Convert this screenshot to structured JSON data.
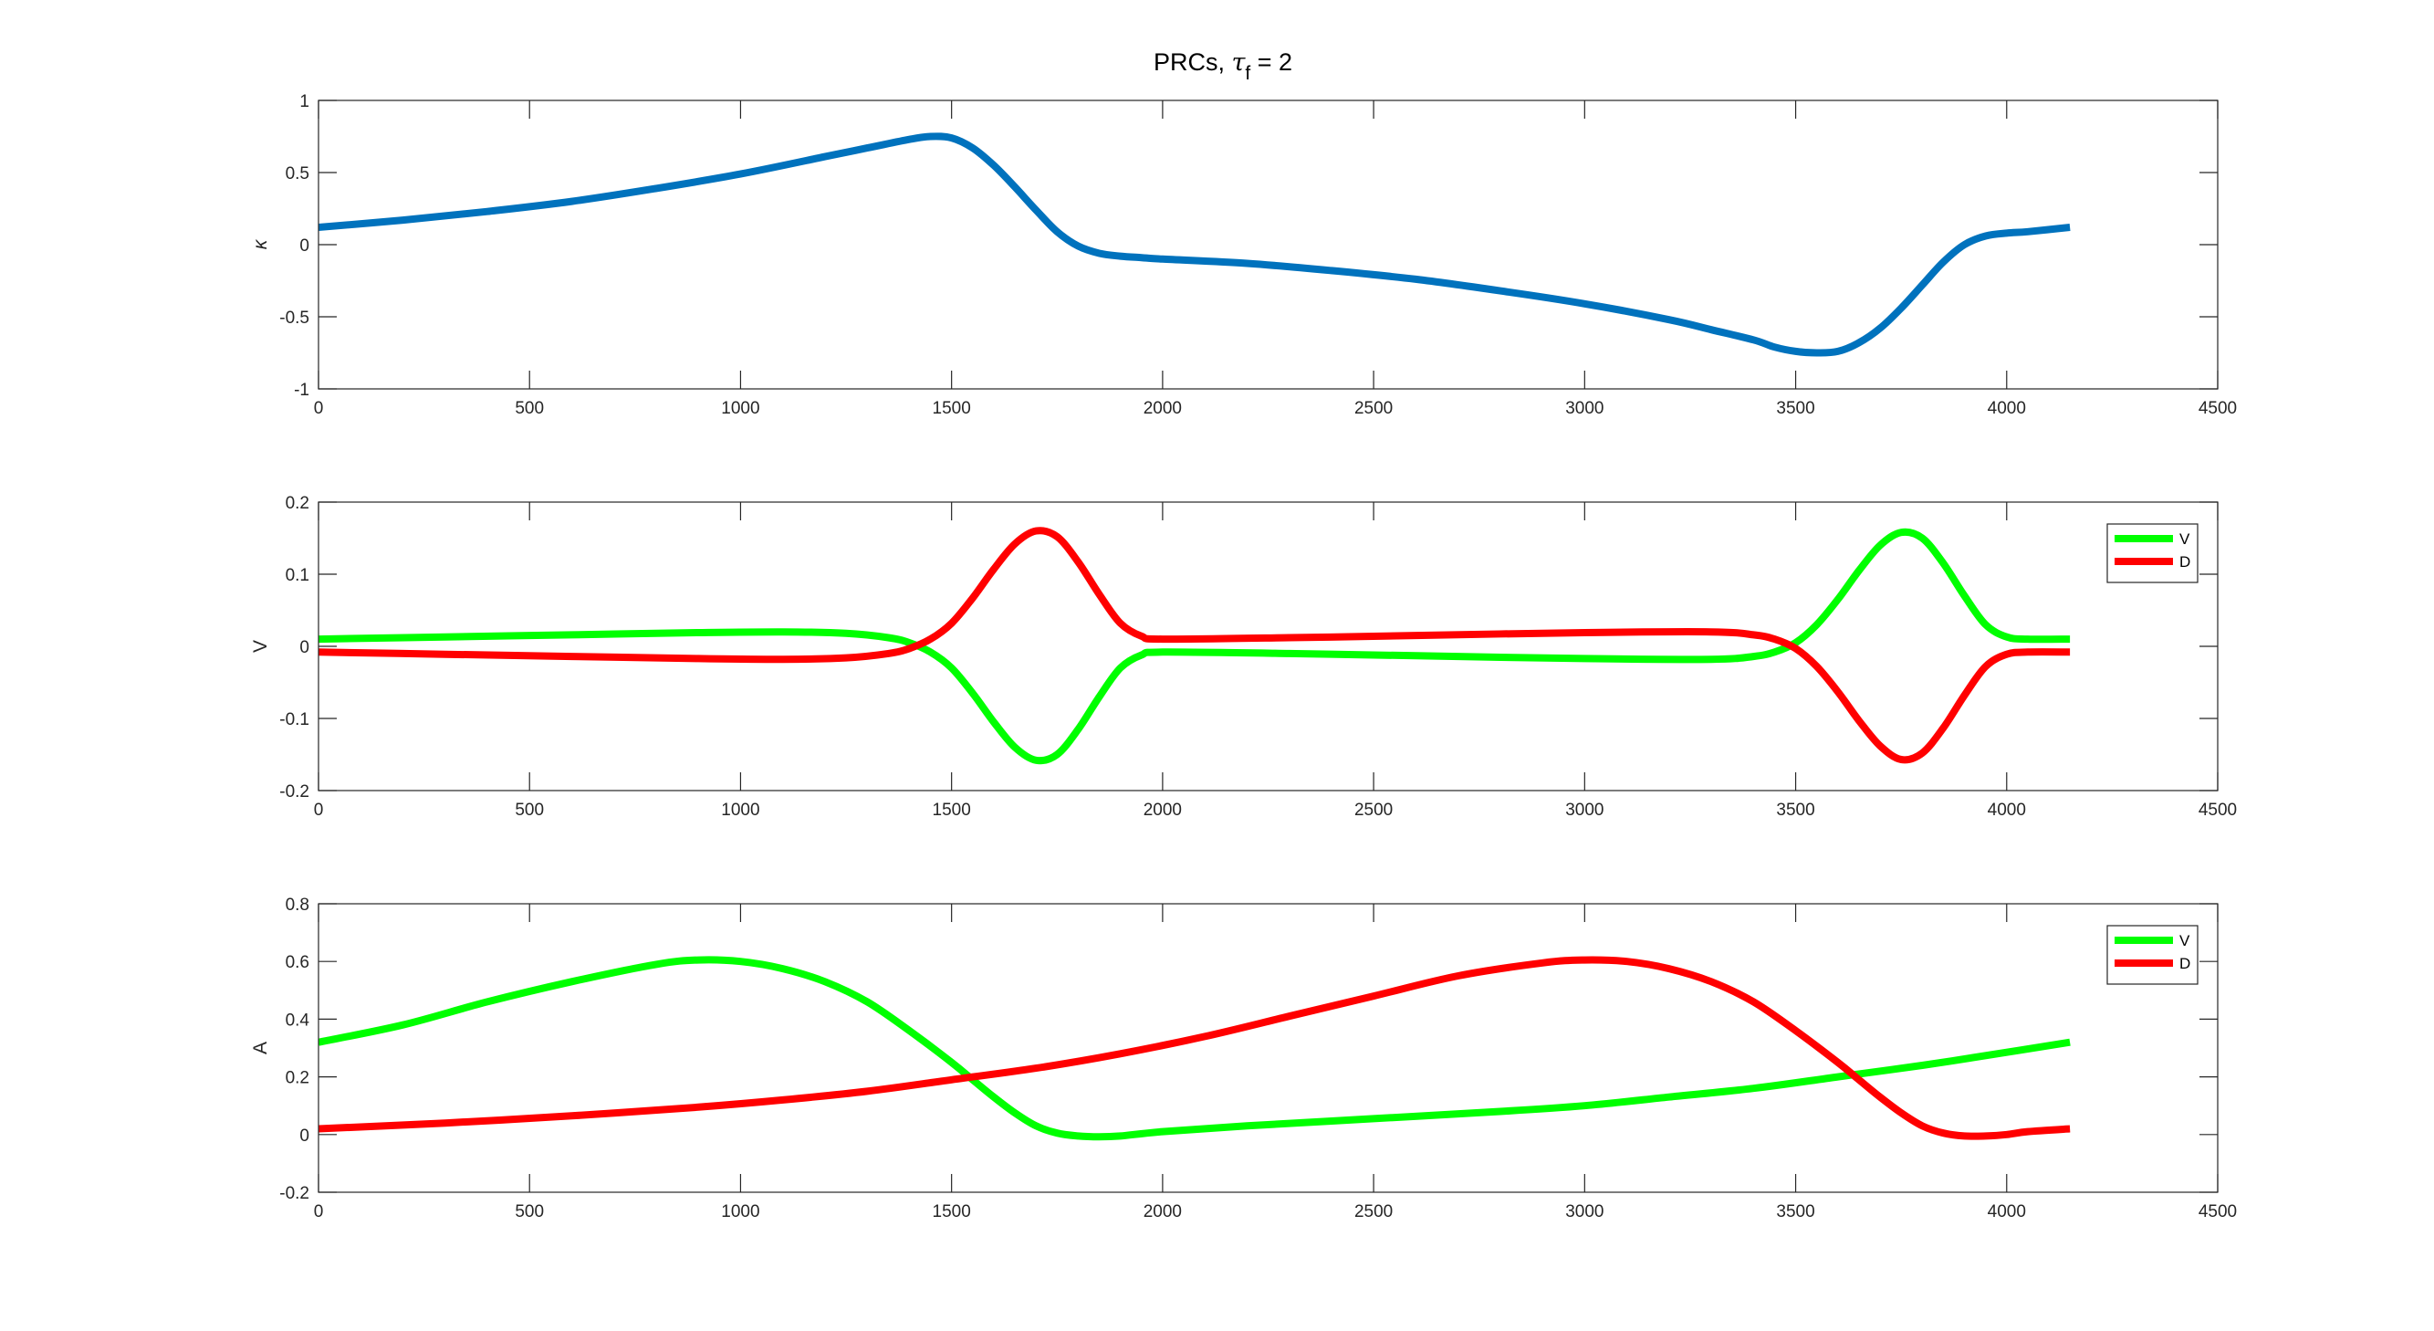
{
  "figure": {
    "title_main": "PRCs, ",
    "title_tau": "τ",
    "title_sub": "f",
    "title_rest": " = 2"
  },
  "chart_data": [
    {
      "type": "line",
      "ylabel": "κ",
      "xlim": [
        0,
        4500
      ],
      "ylim": [
        -1,
        1
      ],
      "xticks": [
        0,
        500,
        1000,
        1500,
        2000,
        2500,
        3000,
        3500,
        4000,
        4500
      ],
      "yticks": [
        -1,
        -0.5,
        0,
        0.5,
        1
      ],
      "ytick_labels": [
        "-1",
        "-0.5",
        "0",
        "0.5",
        "1"
      ],
      "grid": false,
      "legend": null,
      "series": [
        {
          "color": "#0072BD",
          "x": [
            0,
            200,
            400,
            600,
            800,
            1000,
            1200,
            1300,
            1400,
            1450,
            1500,
            1550,
            1600,
            1650,
            1700,
            1750,
            1800,
            1850,
            1900,
            1950,
            2000,
            2200,
            2400,
            2600,
            2800,
            3000,
            3200,
            3300,
            3400,
            3450,
            3500,
            3550,
            3600,
            3650,
            3700,
            3750,
            3800,
            3850,
            3900,
            3950,
            4000,
            4050,
            4150
          ],
          "y": [
            0.12,
            0.17,
            0.23,
            0.3,
            0.39,
            0.49,
            0.61,
            0.67,
            0.73,
            0.75,
            0.74,
            0.67,
            0.55,
            0.4,
            0.24,
            0.09,
            -0.01,
            -0.06,
            -0.08,
            -0.09,
            -0.1,
            -0.13,
            -0.18,
            -0.24,
            -0.32,
            -0.41,
            -0.52,
            -0.59,
            -0.66,
            -0.71,
            -0.74,
            -0.75,
            -0.74,
            -0.68,
            -0.58,
            -0.44,
            -0.28,
            -0.12,
            0.0,
            0.06,
            0.08,
            0.09,
            0.12
          ]
        }
      ]
    },
    {
      "type": "line",
      "ylabel": "V",
      "xlim": [
        0,
        4500
      ],
      "ylim": [
        -0.2,
        0.2
      ],
      "xticks": [
        0,
        500,
        1000,
        1500,
        2000,
        2500,
        3000,
        3500,
        4000,
        4500
      ],
      "yticks": [
        -0.2,
        -0.1,
        0,
        0.1,
        0.2
      ],
      "ytick_labels": [
        "-0.2",
        "-0.1",
        "0",
        "0.1",
        "0.2"
      ],
      "grid": false,
      "legend": "top-right",
      "series": [
        {
          "name": "V",
          "color": "#00FF00",
          "x": [
            0,
            300,
            600,
            900,
            1100,
            1250,
            1350,
            1400,
            1450,
            1500,
            1550,
            1600,
            1650,
            1700,
            1750,
            1800,
            1850,
            1900,
            1950,
            2000,
            2300,
            2600,
            3000,
            3300,
            3400,
            3450,
            3500,
            3550,
            3600,
            3650,
            3700,
            3750,
            3800,
            3850,
            3900,
            3950,
            4000,
            4050,
            4150
          ],
          "y": [
            0.01,
            0.013,
            0.016,
            0.019,
            0.02,
            0.018,
            0.012,
            0.005,
            -0.008,
            -0.03,
            -0.065,
            -0.105,
            -0.14,
            -0.158,
            -0.15,
            -0.115,
            -0.07,
            -0.03,
            -0.012,
            -0.008,
            -0.01,
            -0.013,
            -0.017,
            -0.018,
            -0.014,
            -0.008,
            0.005,
            0.03,
            0.065,
            0.105,
            0.14,
            0.158,
            0.15,
            0.115,
            0.07,
            0.03,
            0.013,
            0.01,
            0.01
          ]
        },
        {
          "name": "D",
          "color": "#FF0000",
          "x": [
            0,
            300,
            600,
            900,
            1100,
            1250,
            1350,
            1400,
            1450,
            1500,
            1550,
            1600,
            1650,
            1700,
            1750,
            1800,
            1850,
            1900,
            1950,
            2000,
            2300,
            2600,
            3000,
            3300,
            3400,
            3450,
            3500,
            3550,
            3600,
            3650,
            3700,
            3750,
            3800,
            3850,
            3900,
            3950,
            4000,
            4050,
            4150
          ],
          "y": [
            -0.008,
            -0.011,
            -0.014,
            -0.017,
            -0.018,
            -0.016,
            -0.01,
            -0.003,
            0.01,
            0.032,
            0.067,
            0.107,
            0.142,
            0.16,
            0.152,
            0.117,
            0.072,
            0.032,
            0.014,
            0.01,
            0.012,
            0.015,
            0.019,
            0.02,
            0.016,
            0.01,
            -0.003,
            -0.028,
            -0.063,
            -0.103,
            -0.138,
            -0.157,
            -0.148,
            -0.113,
            -0.068,
            -0.028,
            -0.011,
            -0.008,
            -0.008
          ]
        }
      ]
    },
    {
      "type": "line",
      "ylabel": "A",
      "xlim": [
        0,
        4500
      ],
      "ylim": [
        -0.2,
        0.8
      ],
      "xticks": [
        0,
        500,
        1000,
        1500,
        2000,
        2500,
        3000,
        3500,
        4000,
        4500
      ],
      "yticks": [
        -0.2,
        0,
        0.2,
        0.4,
        0.6,
        0.8
      ],
      "ytick_labels": [
        "-0.2",
        "0",
        "0.2",
        "0.4",
        "0.6",
        "0.8"
      ],
      "grid": false,
      "legend": "top-right",
      "series": [
        {
          "name": "V",
          "color": "#00FF00",
          "x": [
            0,
            200,
            400,
            600,
            800,
            900,
            1000,
            1100,
            1200,
            1300,
            1400,
            1500,
            1550,
            1600,
            1650,
            1700,
            1750,
            1800,
            1850,
            1900,
            2000,
            2200,
            2500,
            2800,
            3000,
            3200,
            3400,
            3600,
            3800,
            4000,
            4150
          ],
          "y": [
            0.32,
            0.38,
            0.46,
            0.53,
            0.59,
            0.605,
            0.6,
            0.575,
            0.53,
            0.46,
            0.36,
            0.25,
            0.19,
            0.13,
            0.075,
            0.03,
            0.005,
            -0.005,
            -0.008,
            -0.005,
            0.01,
            0.03,
            0.055,
            0.08,
            0.1,
            0.13,
            0.16,
            0.2,
            0.24,
            0.285,
            0.32
          ]
        },
        {
          "name": "D",
          "color": "#FF0000",
          "x": [
            0,
            300,
            600,
            900,
            1100,
            1300,
            1500,
            1700,
            1900,
            2100,
            2300,
            2500,
            2700,
            2900,
            3000,
            3100,
            3200,
            3300,
            3400,
            3500,
            3600,
            3650,
            3700,
            3750,
            3800,
            3850,
            3900,
            3950,
            4000,
            4050,
            4150
          ],
          "y": [
            0.02,
            0.04,
            0.065,
            0.095,
            0.12,
            0.15,
            0.19,
            0.23,
            0.28,
            0.34,
            0.41,
            0.48,
            0.55,
            0.595,
            0.605,
            0.6,
            0.575,
            0.53,
            0.46,
            0.36,
            0.25,
            0.19,
            0.13,
            0.075,
            0.03,
            0.005,
            -0.005,
            -0.005,
            0.0,
            0.01,
            0.02
          ]
        }
      ]
    }
  ]
}
